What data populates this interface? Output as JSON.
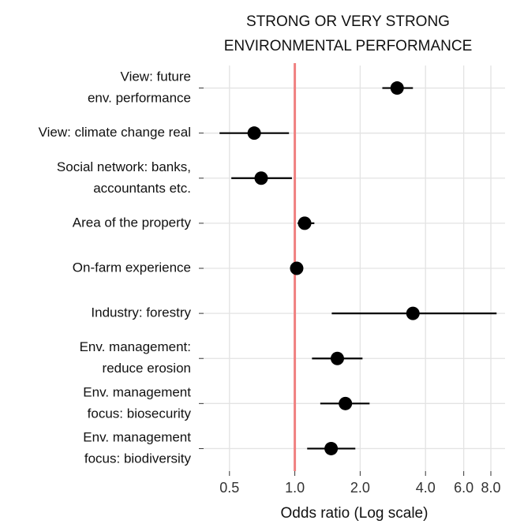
{
  "chart_data": {
    "type": "forest",
    "title": [
      "STRONG OR VERY STRONG",
      "ENVIRONMENTAL PERFORMANCE"
    ],
    "x_label": "Odds ratio (Log scale)",
    "categories": [
      [
        "View: future",
        "env. performance"
      ],
      [
        "View: climate change real"
      ],
      [
        "Social network: banks,",
        "accountants etc."
      ],
      [
        "Area of the property"
      ],
      [
        "On-farm experience"
      ],
      [
        "Industry: forestry"
      ],
      [
        "Env. management:",
        "reduce erosion"
      ],
      [
        "Env. management",
        "focus: biosecurity"
      ],
      [
        "Env. management",
        "focus: biodiversity"
      ]
    ],
    "values": [
      2.96,
      0.65,
      0.7,
      1.11,
      1.02,
      3.5,
      1.57,
      1.71,
      1.47
    ],
    "lower": [
      2.53,
      0.45,
      0.51,
      1.03,
      1.0,
      1.48,
      1.2,
      1.31,
      1.14
    ],
    "upper": [
      3.5,
      0.94,
      0.97,
      1.23,
      1.04,
      8.5,
      2.05,
      2.21,
      1.9
    ],
    "color": "#000000",
    "reference_line": 1,
    "reference_color": "#f08080",
    "xscale": "log",
    "xlim": [
      0.38,
      9.3
    ],
    "xticks": [
      0.5,
      {
        "value": 1,
        "label": "1.0"
      },
      {
        "value": 2,
        "label": "2.0"
      },
      {
        "value": 4,
        "label": "4.0"
      },
      {
        "value": 6,
        "label": "6.0"
      },
      {
        "value": 8,
        "label": "8.0"
      }
    ],
    "grid": true
  }
}
